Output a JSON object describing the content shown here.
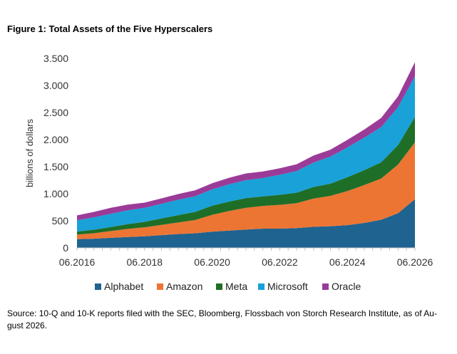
{
  "figure": {
    "title": "Figure 1: Total Assets of the Five Hyperscalers",
    "source": "Source: 10-Q and 10-K reports filed with the SEC, Bloomberg, Flossbach von Storch Research Institute, as of Au-gust 2026."
  },
  "chart_data": {
    "type": "area",
    "stacked": true,
    "ylabel": "billions of dollars",
    "ylim": [
      0,
      3500
    ],
    "yticks": [
      0,
      500,
      1000,
      1500,
      2000,
      2500,
      3000,
      3500
    ],
    "ytick_labels": [
      "0",
      "500",
      "1.000",
      "1.500",
      "2.000",
      "2.500",
      "3.000",
      "3.500"
    ],
    "xlim": [
      2016.5,
      2026.5
    ],
    "xticks": [
      2016.5,
      2018.5,
      2020.5,
      2022.5,
      2024.5,
      2026.5
    ],
    "xtick_labels": [
      "06.2016",
      "06.2018",
      "06.2020",
      "06.2022",
      "06.2024",
      "06.2026"
    ],
    "grid": false,
    "legend_position": "bottom",
    "x": [
      2016.5,
      2017.0,
      2017.5,
      2018.0,
      2018.5,
      2019.0,
      2019.5,
      2020.0,
      2020.5,
      2021.0,
      2021.5,
      2022.0,
      2022.5,
      2023.0,
      2023.5,
      2024.0,
      2024.5,
      2025.0,
      2025.5,
      2026.0,
      2026.5
    ],
    "series": [
      {
        "name": "Alphabet",
        "color": "#1f6390",
        "values": [
          160,
          170,
          185,
          200,
          215,
          235,
          255,
          270,
          300,
          320,
          340,
          355,
          355,
          365,
          390,
          400,
          420,
          460,
          520,
          640,
          900
        ]
      },
      {
        "name": "Amazon",
        "color": "#ec7533",
        "values": [
          85,
          100,
          125,
          150,
          165,
          190,
          215,
          245,
          310,
          360,
          400,
          420,
          440,
          460,
          520,
          560,
          630,
          700,
          760,
          900,
          1050
        ]
      },
      {
        "name": "Meta",
        "color": "#1f6e27",
        "values": [
          55,
          65,
          75,
          90,
          100,
          120,
          135,
          150,
          170,
          175,
          180,
          175,
          185,
          195,
          215,
          225,
          255,
          275,
          300,
          360,
          470
        ]
      },
      {
        "name": "Microsoft",
        "color": "#19a1d8",
        "values": [
          210,
          230,
          245,
          255,
          260,
          270,
          285,
          290,
          300,
          320,
          330,
          340,
          370,
          400,
          450,
          500,
          550,
          600,
          650,
          700,
          750
        ]
      },
      {
        "name": "Oracle",
        "color": "#9b3b98",
        "values": [
          90,
          100,
          110,
          105,
          95,
          100,
          105,
          110,
          115,
          120,
          125,
          120,
          120,
          125,
          130,
          130,
          140,
          150,
          170,
          200,
          260
        ]
      }
    ]
  }
}
